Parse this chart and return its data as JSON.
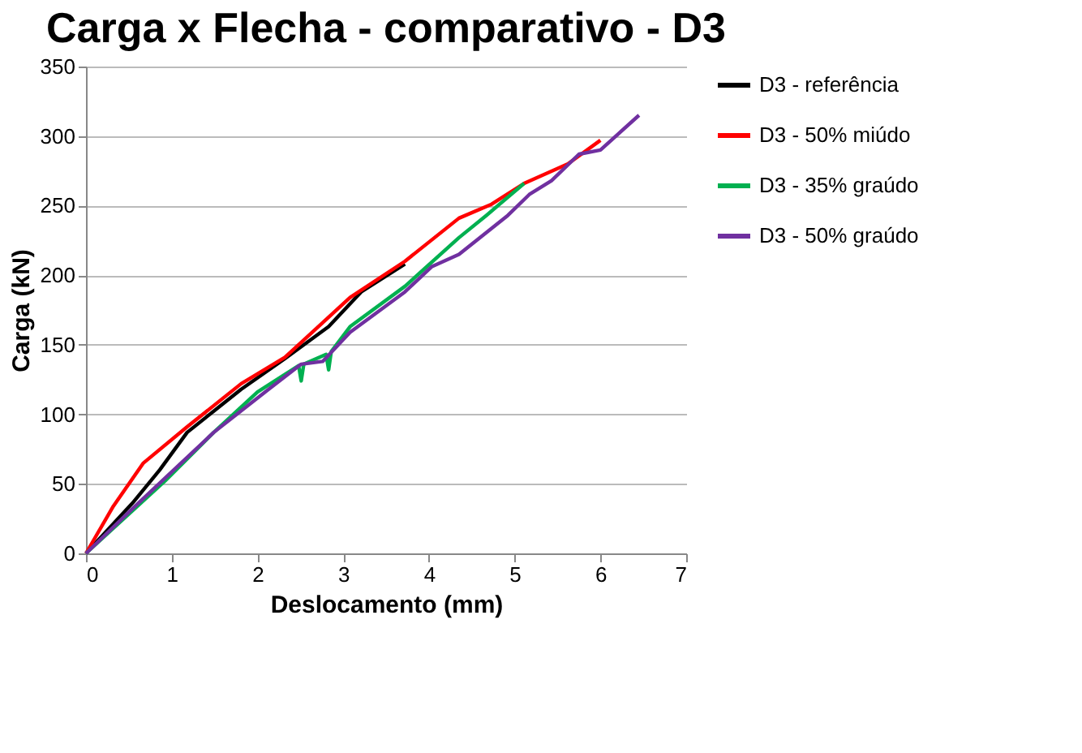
{
  "chart_data": {
    "type": "line",
    "title": "Carga x Flecha - comparativo - D3",
    "xlabel": "Deslocamento (mm)",
    "ylabel": "Carga (kN)",
    "xlim": [
      0,
      7
    ],
    "xticks": [
      0,
      1,
      2,
      3,
      4,
      5,
      6,
      7
    ],
    "ylim": [
      0,
      350
    ],
    "yticks": [
      0,
      50,
      100,
      150,
      200,
      250,
      300,
      350
    ],
    "grid": "y",
    "legend": "right",
    "marker": "none",
    "line_style": "solid",
    "series": [
      {
        "name": "D3 - referência",
        "color": "#000000",
        "x": [
          0,
          0.54,
          0.86,
          1.18,
          1.81,
          2.32,
          2.83,
          3.21,
          3.72
        ],
        "values": [
          0,
          36,
          60,
          87,
          118,
          140,
          163,
          188,
          208
        ]
      },
      {
        "name": "D3 - 50% miúdo",
        "color": "#ff0000",
        "x": [
          0,
          0.32,
          0.67,
          1.18,
          1.81,
          2.32,
          2.64,
          3.08,
          3.72,
          4.35,
          4.73,
          5.11,
          5.62,
          6.0
        ],
        "values": [
          0,
          34,
          65,
          91,
          122,
          141,
          159,
          184,
          210,
          241,
          251,
          266,
          280,
          297
        ]
      },
      {
        "name": "D3 - 35% graúdo",
        "color": "#00b050",
        "x": [
          0,
          0.92,
          1.49,
          2.0,
          2.48,
          2.51,
          2.54,
          2.8,
          2.83,
          2.86,
          3.08,
          3.72,
          4.35,
          4.67,
          5.11
        ],
        "values": [
          0,
          52,
          87,
          116,
          135,
          124,
          136,
          143,
          132,
          145,
          163,
          192,
          227,
          243,
          266
        ]
      },
      {
        "name": "D3 - 50% graúdo",
        "color": "#7030a0",
        "x": [
          0,
          0.54,
          1.49,
          2.13,
          2.51,
          2.76,
          3.08,
          3.72,
          4.03,
          4.35,
          4.92,
          5.17,
          5.43,
          5.75,
          6.0,
          6.45
        ],
        "values": [
          0,
          32,
          87,
          118,
          136,
          138,
          159,
          188,
          206,
          215,
          243,
          258,
          268,
          287,
          290,
          315
        ]
      }
    ]
  }
}
